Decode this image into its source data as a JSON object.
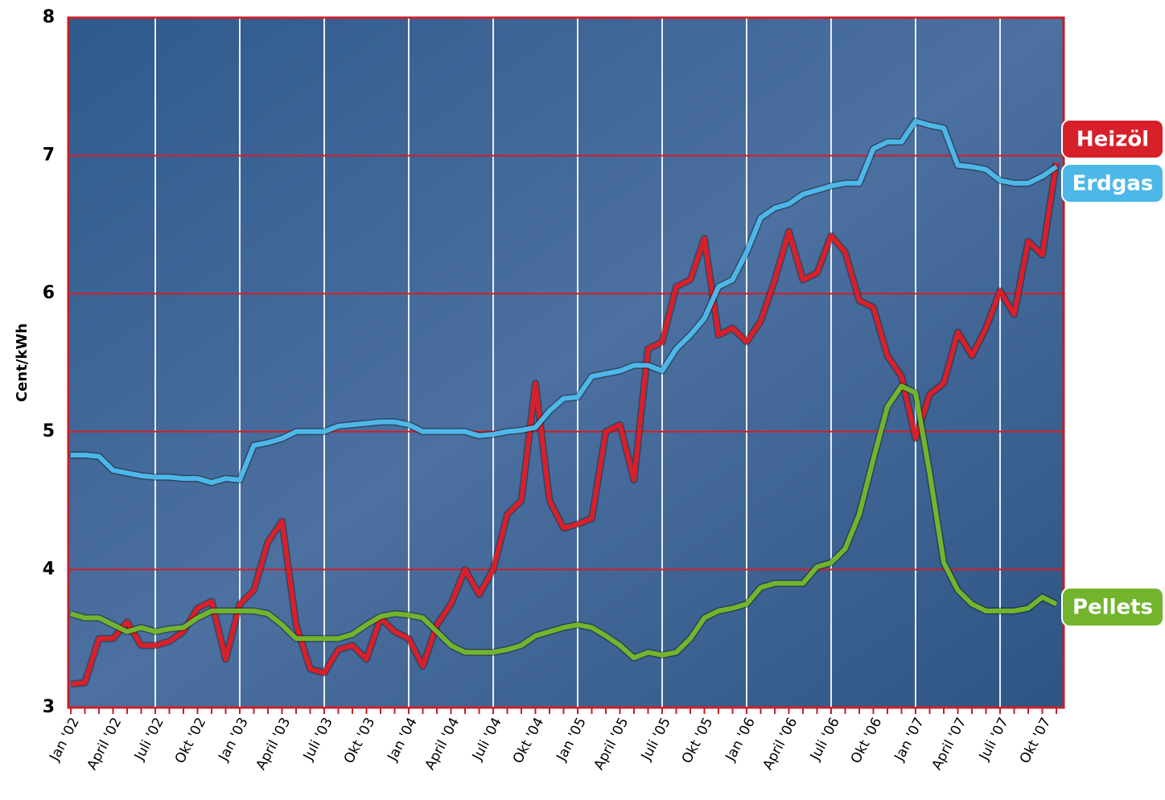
{
  "chart_data": {
    "type": "line",
    "y_label": "Cent/kWh",
    "categories": [
      "Jan '02",
      null,
      null,
      "April '02",
      null,
      null,
      "Juli '02",
      null,
      null,
      "Okt '02",
      null,
      null,
      "Jan '03",
      null,
      null,
      "April '03",
      null,
      null,
      "Juli '03",
      null,
      null,
      "Okt '03",
      null,
      null,
      "Jan '04",
      null,
      null,
      "April '04",
      null,
      null,
      "Juli '04",
      null,
      null,
      "Okt '04",
      null,
      null,
      "Jan '05",
      null,
      null,
      "April '05",
      null,
      null,
      "Juli '05",
      null,
      null,
      "Okt '05",
      null,
      null,
      "Jan '06",
      null,
      null,
      "April '06",
      null,
      null,
      "Juli '06",
      null,
      null,
      "Okt '06",
      null,
      null,
      "Jan '07",
      null,
      null,
      "April '07",
      null,
      null,
      "Juli '07",
      null,
      null,
      "Okt '07",
      null
    ],
    "series": [
      {
        "name": "Heizöl",
        "color": "#d8202a",
        "values": [
          3.17,
          3.18,
          3.5,
          3.5,
          3.62,
          3.45,
          3.45,
          3.48,
          3.55,
          3.72,
          3.77,
          3.35,
          3.75,
          3.85,
          4.2,
          4.35,
          3.6,
          3.28,
          3.25,
          3.42,
          3.45,
          3.35,
          3.65,
          3.55,
          3.5,
          3.3,
          3.6,
          3.75,
          4.0,
          3.82,
          4.0,
          4.4,
          4.5,
          5.35,
          4.5,
          4.3,
          4.33,
          4.37,
          5.0,
          5.05,
          4.65,
          5.6,
          5.65,
          6.05,
          6.1,
          6.4,
          5.7,
          5.75,
          5.65,
          5.8,
          6.1,
          6.45,
          6.1,
          6.15,
          6.42,
          6.3,
          5.95,
          5.9,
          5.55,
          5.4,
          4.95,
          5.27,
          5.35,
          5.72,
          5.55,
          5.75,
          6.02,
          5.85,
          6.38,
          6.28,
          6.95
        ]
      },
      {
        "name": "Erdgas",
        "color": "#4db8e8",
        "values": [
          4.83,
          4.83,
          4.82,
          4.72,
          4.7,
          4.68,
          4.67,
          4.67,
          4.66,
          4.66,
          4.63,
          4.66,
          4.65,
          4.9,
          4.92,
          4.95,
          5.0,
          5.0,
          5.0,
          5.04,
          5.05,
          5.06,
          5.07,
          5.07,
          5.05,
          5.0,
          5.0,
          5.0,
          5.0,
          4.97,
          4.98,
          5.0,
          5.01,
          5.03,
          5.15,
          5.24,
          5.25,
          5.4,
          5.42,
          5.44,
          5.48,
          5.48,
          5.44,
          5.6,
          5.7,
          5.82,
          6.05,
          6.1,
          6.3,
          6.55,
          6.62,
          6.65,
          6.72,
          6.75,
          6.78,
          6.8,
          6.8,
          7.05,
          7.1,
          7.1,
          7.25,
          7.22,
          7.2,
          6.93,
          6.92,
          6.9,
          6.82,
          6.8,
          6.8,
          6.85,
          6.92
        ]
      },
      {
        "name": "Pellets",
        "color": "#72b52c",
        "values": [
          3.68,
          3.65,
          3.65,
          3.6,
          3.55,
          3.58,
          3.55,
          3.57,
          3.58,
          3.65,
          3.7,
          3.7,
          3.7,
          3.7,
          3.68,
          3.6,
          3.5,
          3.5,
          3.5,
          3.5,
          3.53,
          3.6,
          3.66,
          3.68,
          3.67,
          3.65,
          3.55,
          3.45,
          3.4,
          3.4,
          3.4,
          3.42,
          3.45,
          3.52,
          3.55,
          3.58,
          3.6,
          3.58,
          3.52,
          3.45,
          3.36,
          3.4,
          3.38,
          3.4,
          3.5,
          3.65,
          3.7,
          3.72,
          3.75,
          3.87,
          3.9,
          3.9,
          3.9,
          4.02,
          4.05,
          4.15,
          4.4,
          4.8,
          5.18,
          5.33,
          5.28,
          4.7,
          4.05,
          3.85,
          3.75,
          3.7,
          3.7,
          3.7,
          3.72,
          3.8,
          3.75
        ]
      }
    ],
    "ylim": [
      3,
      8
    ],
    "yticks": [
      3,
      4,
      5,
      6,
      7,
      8
    ],
    "grid": true
  }
}
